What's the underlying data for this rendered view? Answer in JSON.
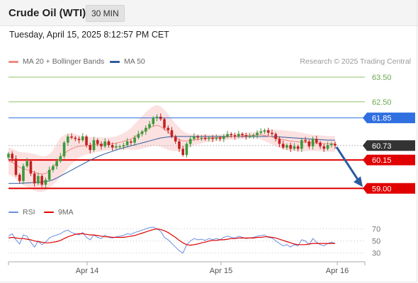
{
  "header": {
    "title": "Crude Oil (WTI)",
    "timeframe": "30 MIN",
    "timestamp": "Tuesday, April 15, 2025 8:12:57 PM CET"
  },
  "legend": {
    "ma20": {
      "label": "MA 20 + Bollinger Bands",
      "color": "#f08a80"
    },
    "ma50": {
      "label": "MA 50",
      "color": "#2c5c9c"
    },
    "copyright": "Research © 2025 Trading Central",
    "rsi": {
      "label": "RSI",
      "color": "#6a8ee0"
    },
    "ma9": {
      "label": "9MA",
      "color": "#e00000"
    }
  },
  "colors": {
    "bullish": "#3a9a3a",
    "bearish": "#c42020",
    "resistance": "#e00000",
    "pivot": "#2f6fe0",
    "target": "#8ec06a",
    "current": "#333333",
    "arrow": "#2a5aa0"
  },
  "chart_data": [
    {
      "type": "candlestick",
      "ylim": [
        58.75,
        63.9
      ],
      "x_ticks": [
        "Apr 14",
        "Apr 15",
        "Apr 16"
      ],
      "levels": [
        {
          "value": 63.5,
          "label": "63.50",
          "kind": "target"
        },
        {
          "value": 62.5,
          "label": "62.50",
          "kind": "target"
        },
        {
          "value": 61.85,
          "label": "61.85",
          "kind": "pivot"
        },
        {
          "value": 60.73,
          "label": "60.73",
          "kind": "current"
        },
        {
          "value": 60.15,
          "label": "60.15",
          "kind": "resistance"
        },
        {
          "value": 59.0,
          "label": "59.00",
          "kind": "resistance"
        }
      ],
      "closes": [
        60.4,
        60.2,
        59.55,
        59.3,
        59.9,
        60.1,
        59.6,
        59.2,
        59.5,
        59.15,
        59.35,
        59.75,
        59.9,
        60.1,
        60.3,
        60.85,
        61.1,
        61.05,
        61.0,
        60.95,
        61.1,
        60.75,
        60.55,
        60.95,
        60.8,
        60.7,
        60.9,
        60.75,
        60.65,
        60.7,
        60.7,
        60.75,
        60.9,
        60.85,
        61.05,
        61.2,
        61.3,
        61.45,
        61.6,
        61.85,
        61.9,
        61.8,
        61.45,
        61.35,
        61.1,
        60.9,
        60.6,
        60.35,
        60.8,
        61.0,
        61.1,
        61.05,
        61.05,
        61.0,
        61.05,
        61.0,
        61.05,
        61.0,
        61.1,
        61.2,
        61.15,
        61.1,
        61.2,
        61.15,
        61.1,
        61.1,
        61.15,
        61.25,
        61.3,
        61.35,
        61.25,
        61.2,
        61.0,
        60.8,
        60.65,
        60.75,
        60.6,
        60.7,
        60.6,
        60.95,
        60.9,
        60.7,
        61.0,
        60.85,
        60.7,
        60.6,
        60.75,
        60.8,
        60.73
      ],
      "ma20": [
        60.1,
        60.05,
        59.95,
        59.85,
        59.8,
        59.75,
        59.7,
        59.65,
        59.6,
        59.58,
        59.6,
        59.7,
        59.85,
        60.05,
        60.25,
        60.4,
        60.52,
        60.6,
        60.66,
        60.7,
        60.72,
        60.73,
        60.74,
        60.76,
        60.77,
        60.78,
        60.79,
        60.8,
        60.81,
        60.83,
        60.86,
        60.9,
        60.95,
        61.0,
        61.08,
        61.17,
        61.26,
        61.36,
        61.45,
        61.52,
        61.55,
        61.5,
        61.4,
        61.28,
        61.16,
        61.06,
        60.98,
        60.92,
        60.92,
        60.94,
        60.96,
        60.98,
        61.0,
        61.02,
        61.03,
        61.04,
        61.05,
        61.06,
        61.07,
        61.08,
        61.09,
        61.1,
        61.11,
        61.12,
        61.13,
        61.14,
        61.15,
        61.16,
        61.16,
        61.14,
        61.11,
        61.08,
        61.04,
        61.0,
        60.97,
        60.94,
        60.92,
        60.9,
        60.88,
        60.87,
        60.86,
        60.85,
        60.84,
        60.83,
        60.82,
        60.81,
        60.8,
        60.8,
        60.8
      ],
      "ma50": [
        59.2,
        59.2,
        59.2,
        59.2,
        59.21,
        59.22,
        59.23,
        59.24,
        59.25,
        59.26,
        59.28,
        59.3,
        59.35,
        59.42,
        59.5,
        59.58,
        59.66,
        59.74,
        59.82,
        59.9,
        59.98,
        60.06,
        60.14,
        60.21,
        60.28,
        60.34,
        60.4,
        60.45,
        60.5,
        60.55,
        60.6,
        60.64,
        60.68,
        60.72,
        60.76,
        60.8,
        60.84,
        60.88,
        60.92,
        60.96,
        61.0,
        61.04,
        61.06,
        61.08,
        61.09,
        61.1,
        61.1,
        61.1,
        61.1,
        61.1,
        61.1,
        61.1,
        61.1,
        61.1,
        61.1,
        61.1,
        61.1,
        61.1,
        61.1,
        61.1,
        61.1,
        61.1,
        61.1,
        61.1,
        61.1,
        61.1,
        61.1,
        61.1,
        61.1,
        61.1,
        61.1,
        61.1,
        61.09,
        61.08,
        61.07,
        61.06,
        61.05,
        61.04,
        61.03,
        61.02,
        61.01,
        61.0,
        60.99,
        60.98,
        60.97,
        60.96,
        60.95,
        60.95,
        60.95
      ],
      "bb_width": [
        0.55,
        0.55,
        0.58,
        0.62,
        0.66,
        0.7,
        0.72,
        0.74,
        0.74,
        0.72,
        0.7,
        0.68,
        0.7,
        0.76,
        0.8,
        0.76,
        0.7,
        0.62,
        0.54,
        0.46,
        0.4,
        0.36,
        0.34,
        0.32,
        0.3,
        0.28,
        0.26,
        0.26,
        0.26,
        0.28,
        0.3,
        0.34,
        0.38,
        0.44,
        0.52,
        0.6,
        0.66,
        0.72,
        0.76,
        0.8,
        0.82,
        0.82,
        0.78,
        0.72,
        0.64,
        0.56,
        0.48,
        0.4,
        0.32,
        0.26,
        0.22,
        0.2,
        0.18,
        0.16,
        0.15,
        0.14,
        0.13,
        0.12,
        0.12,
        0.12,
        0.12,
        0.12,
        0.12,
        0.12,
        0.12,
        0.12,
        0.12,
        0.14,
        0.18,
        0.22,
        0.26,
        0.3,
        0.34,
        0.36,
        0.38,
        0.4,
        0.4,
        0.4,
        0.4,
        0.38,
        0.36,
        0.34,
        0.32,
        0.32,
        0.32,
        0.32,
        0.32,
        0.32,
        0.32
      ],
      "forecast": {
        "from": 60.73,
        "to": 59.0
      }
    },
    {
      "type": "line",
      "title": "RSI",
      "ylim": [
        25,
        80
      ],
      "y_ticks": [
        "70",
        "50",
        "30"
      ],
      "rsi": [
        58,
        62,
        52,
        45,
        60,
        58,
        48,
        40,
        50,
        44,
        48,
        55,
        58,
        60,
        62,
        66,
        68,
        64,
        62,
        60,
        64,
        56,
        52,
        60,
        56,
        54,
        60,
        56,
        55,
        57,
        58,
        59,
        62,
        61,
        64,
        66,
        68,
        70,
        72,
        73,
        70,
        66,
        56,
        52,
        46,
        40,
        34,
        30,
        44,
        50,
        54,
        52,
        53,
        51,
        54,
        52,
        54,
        52,
        56,
        58,
        56,
        55,
        58,
        56,
        54,
        55,
        56,
        58,
        59,
        60,
        56,
        55,
        50,
        46,
        42,
        44,
        40,
        44,
        42,
        52,
        50,
        44,
        54,
        48,
        44,
        42,
        46,
        48,
        46
      ],
      "ma9": [
        55,
        56,
        55,
        54,
        54,
        53,
        52,
        50,
        49,
        48,
        47,
        47,
        48,
        49,
        51,
        54,
        57,
        59,
        61,
        62,
        62,
        61,
        60,
        60,
        59,
        58,
        57,
        57,
        56,
        56,
        56,
        56,
        57,
        58,
        59,
        61,
        63,
        65,
        67,
        69,
        70,
        69,
        67,
        64,
        60,
        56,
        51,
        47,
        44,
        43,
        44,
        45,
        47,
        48,
        50,
        51,
        51,
        52,
        52,
        53,
        54,
        54,
        55,
        55,
        55,
        55,
        55,
        56,
        56,
        57,
        57,
        56,
        55,
        53,
        51,
        49,
        47,
        45,
        44,
        44,
        44,
        45,
        46,
        46,
        46,
        46,
        46,
        46,
        46
      ]
    }
  ]
}
